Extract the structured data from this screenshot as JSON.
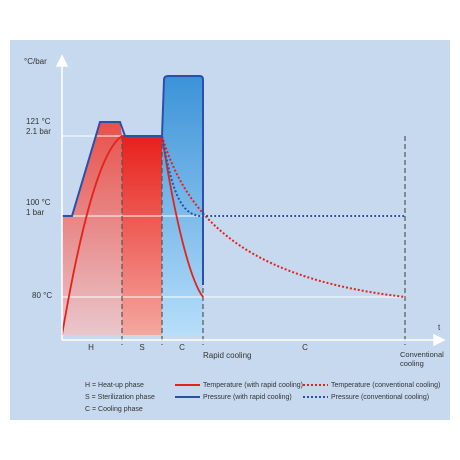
{
  "axes": {
    "y_unit": "°C/bar",
    "x_unit": "t"
  },
  "levels": [
    {
      "temperature": "121 °C",
      "pressure": "2.1 bar"
    },
    {
      "temperature": "100 °C",
      "pressure": "1 bar"
    },
    {
      "temperature": "80 °C"
    }
  ],
  "phases": [
    "H",
    "S",
    "C",
    "C"
  ],
  "markers": [
    "Rapid cooling",
    "Conventional cooling"
  ],
  "phase_key": [
    "H = Heat-up phase",
    "S = Sterilization phase",
    "C = Cooling phase"
  ],
  "legend": [
    "Temperature (with rapid cooling)",
    "Pressure (with rapid cooling)",
    "Temperature (conventional cooling)",
    "Pressure (conventional cooling)"
  ]
}
